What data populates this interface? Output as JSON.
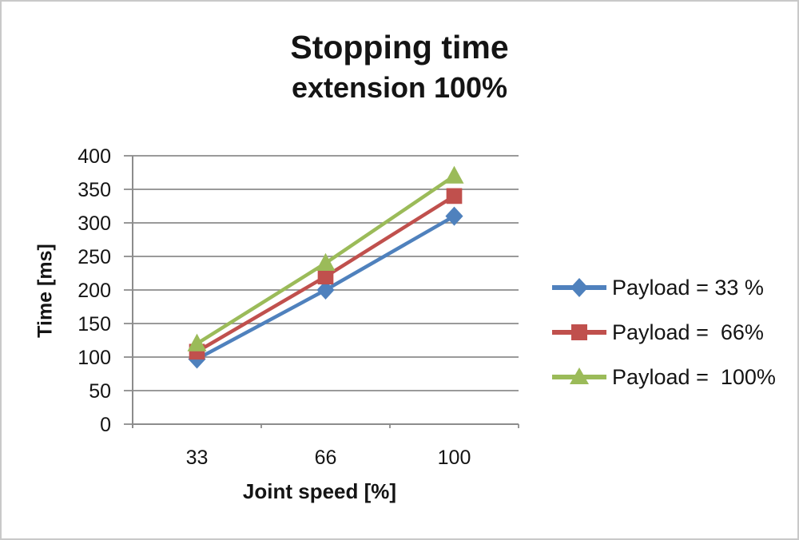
{
  "chart_data": {
    "type": "line",
    "title": "Stopping time",
    "subtitle": "extension 100%",
    "xlabel": "Joint speed [%]",
    "ylabel": "Time [ms]",
    "categories": [
      33,
      66,
      100
    ],
    "x_tick_labels": [
      "33",
      "66",
      "100"
    ],
    "ylim": [
      0,
      400
    ],
    "ytick_step": 50,
    "y_tick_labels": [
      "0",
      "50",
      "100",
      "150",
      "200",
      "250",
      "300",
      "350",
      "400"
    ],
    "grid": "horizontal",
    "legend_position": "right",
    "series": [
      {
        "name": "Payload = 33 %",
        "values": [
          97,
          200,
          310
        ],
        "color": "#4F81BD",
        "marker": "diamond"
      },
      {
        "name": "Payload =  66%",
        "values": [
          108,
          220,
          340
        ],
        "color": "#C0504D",
        "marker": "square"
      },
      {
        "name": "Payload =  100%",
        "values": [
          120,
          240,
          370
        ],
        "color": "#9BBB59",
        "marker": "triangle"
      }
    ]
  },
  "colors": {
    "gridline": "#8c8c8c",
    "axis": "#8c8c8c",
    "text": "#141414",
    "border": "#c9c9c9",
    "background": "#ffffff"
  }
}
